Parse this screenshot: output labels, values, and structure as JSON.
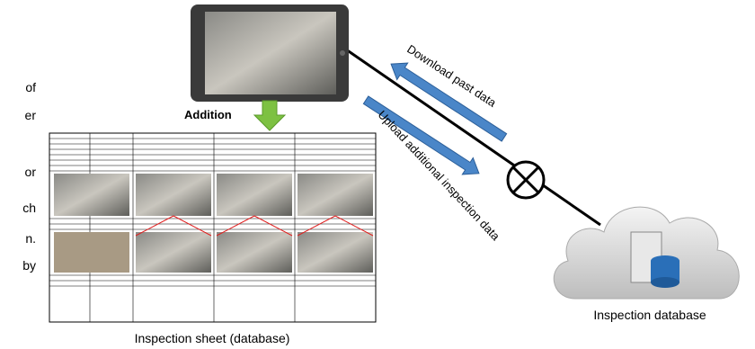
{
  "diagram": {
    "addition_label": "Addition",
    "download_label": "Download past data",
    "upload_label": "Upload additional inspection data",
    "sheet_caption": "Inspection sheet (database)",
    "database_label": "Inspection database",
    "left_fragments": [
      "of",
      "er",
      "or",
      "ch",
      "n.",
      "by"
    ]
  }
}
